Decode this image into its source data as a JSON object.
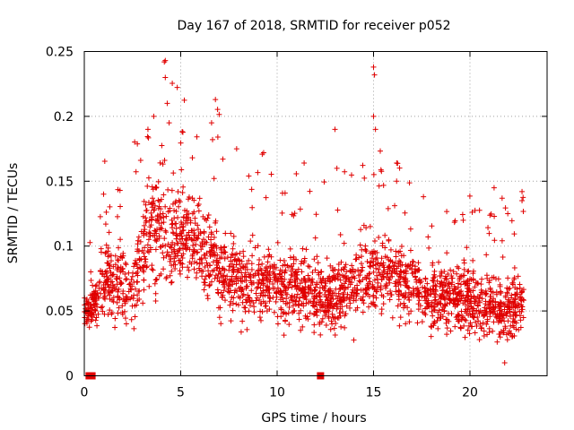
{
  "chart_data": {
    "type": "scatter",
    "title": "Day 167 of 2018, SRMTID for receiver p052",
    "xlabel": "GPS time / hours",
    "ylabel": "SRMTID / TECUs",
    "xlim": [
      0,
      24
    ],
    "ylim": [
      0,
      0.25
    ],
    "x_ticks": [
      0,
      5,
      10,
      15,
      20
    ],
    "x_tick_labels": [
      "0",
      "5",
      "10",
      "15",
      "20"
    ],
    "y_ticks": [
      0,
      0.05,
      0.1,
      0.15,
      0.2,
      0.25
    ],
    "y_tick_labels": [
      "0",
      "0.05",
      "0.1",
      "0.15",
      "0.2",
      "0.25"
    ],
    "grid": true,
    "marker": "plus",
    "color": "#e00000",
    "zero_flags": [
      0.25,
      0.4,
      12.25
    ],
    "envelope": {
      "x": [
        0.0,
        0.5,
        1.0,
        1.5,
        2.0,
        2.5,
        3.0,
        3.5,
        4.0,
        4.5,
        5.0,
        5.5,
        6.0,
        6.5,
        7.0,
        7.5,
        8.0,
        8.5,
        9.0,
        9.5,
        10.0,
        10.5,
        11.0,
        11.5,
        12.0,
        12.5,
        13.0,
        13.5,
        14.0,
        14.5,
        15.0,
        15.5,
        16.0,
        16.5,
        17.0,
        17.5,
        18.0,
        18.5,
        19.0,
        19.5,
        20.0,
        20.5,
        21.0,
        21.5,
        22.0,
        22.5,
        22.8
      ],
      "center": [
        0.05,
        0.055,
        0.075,
        0.07,
        0.07,
        0.065,
        0.09,
        0.12,
        0.11,
        0.1,
        0.11,
        0.115,
        0.1,
        0.095,
        0.085,
        0.08,
        0.075,
        0.07,
        0.07,
        0.075,
        0.07,
        0.065,
        0.07,
        0.065,
        0.06,
        0.06,
        0.065,
        0.065,
        0.07,
        0.075,
        0.08,
        0.08,
        0.075,
        0.075,
        0.07,
        0.065,
        0.06,
        0.06,
        0.06,
        0.06,
        0.06,
        0.055,
        0.055,
        0.05,
        0.05,
        0.055,
        0.06
      ],
      "spread": [
        0.01,
        0.02,
        0.03,
        0.03,
        0.03,
        0.03,
        0.04,
        0.05,
        0.05,
        0.04,
        0.035,
        0.035,
        0.035,
        0.035,
        0.035,
        0.03,
        0.03,
        0.03,
        0.03,
        0.03,
        0.03,
        0.03,
        0.03,
        0.03,
        0.025,
        0.03,
        0.03,
        0.03,
        0.03,
        0.03,
        0.03,
        0.03,
        0.03,
        0.03,
        0.03,
        0.025,
        0.025,
        0.025,
        0.025,
        0.025,
        0.025,
        0.025,
        0.025,
        0.025,
        0.025,
        0.03,
        0.03
      ]
    },
    "spikes": [
      {
        "x": 1.0,
        "y": 0.14
      },
      {
        "x": 3.3,
        "y": 0.19
      },
      {
        "x": 3.6,
        "y": 0.2
      },
      {
        "x": 4.15,
        "y": 0.242
      },
      {
        "x": 4.2,
        "y": 0.243
      },
      {
        "x": 4.2,
        "y": 0.23
      },
      {
        "x": 4.3,
        "y": 0.21
      },
      {
        "x": 4.4,
        "y": 0.195
      },
      {
        "x": 6.6,
        "y": 0.195
      },
      {
        "x": 6.8,
        "y": 0.213
      },
      {
        "x": 7.9,
        "y": 0.175
      },
      {
        "x": 9.3,
        "y": 0.172
      },
      {
        "x": 11.4,
        "y": 0.164
      },
      {
        "x": 13.0,
        "y": 0.19
      },
      {
        "x": 13.1,
        "y": 0.16
      },
      {
        "x": 15.0,
        "y": 0.238
      },
      {
        "x": 15.05,
        "y": 0.232
      },
      {
        "x": 15.0,
        "y": 0.2
      },
      {
        "x": 15.1,
        "y": 0.19
      },
      {
        "x": 16.2,
        "y": 0.164
      },
      {
        "x": 22.7,
        "y": 0.142
      },
      {
        "x": 22.7,
        "y": 0.135
      },
      {
        "x": 21.8,
        "y": 0.01
      }
    ]
  }
}
